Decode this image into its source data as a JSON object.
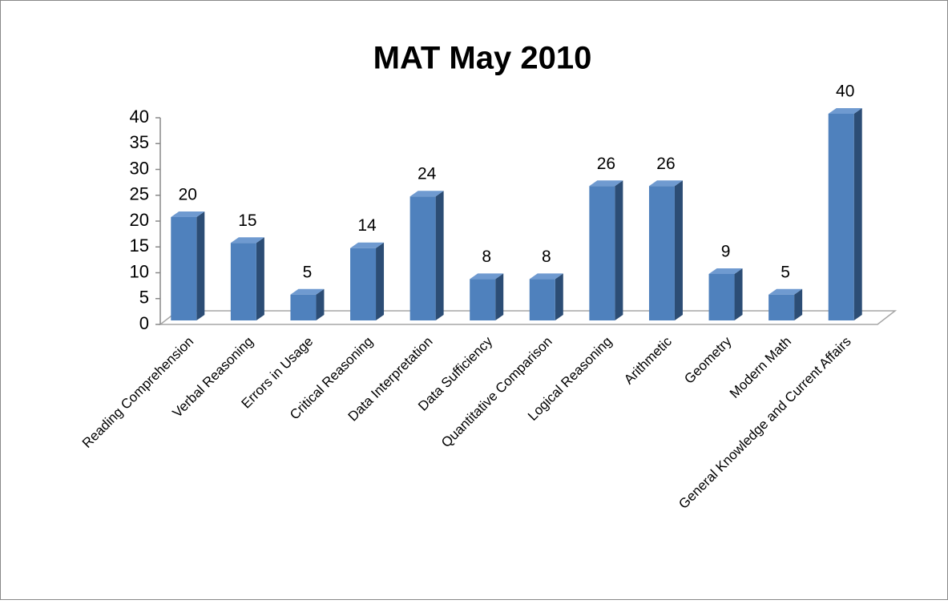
{
  "chart_data": {
    "type": "bar",
    "title": "MAT May 2010",
    "categories": [
      "Reading Comprehension",
      "Verbal Reasoning",
      "Errors in Usage",
      "Critical Reasoning",
      "Data Interpretation",
      "Data Sufficiency",
      "Quantitative Comparison",
      "Logical Reasoning",
      "Arithmetic",
      "Geometry",
      "Modern Math",
      "General Knowledge and Current Affairs"
    ],
    "values": [
      20,
      15,
      5,
      14,
      24,
      8,
      8,
      26,
      26,
      9,
      5,
      40
    ],
    "color": "#4f81bd",
    "ylim": [
      0,
      40
    ],
    "yticks": [
      0,
      5,
      10,
      15,
      20,
      25,
      30,
      35,
      40
    ],
    "grid": false
  }
}
